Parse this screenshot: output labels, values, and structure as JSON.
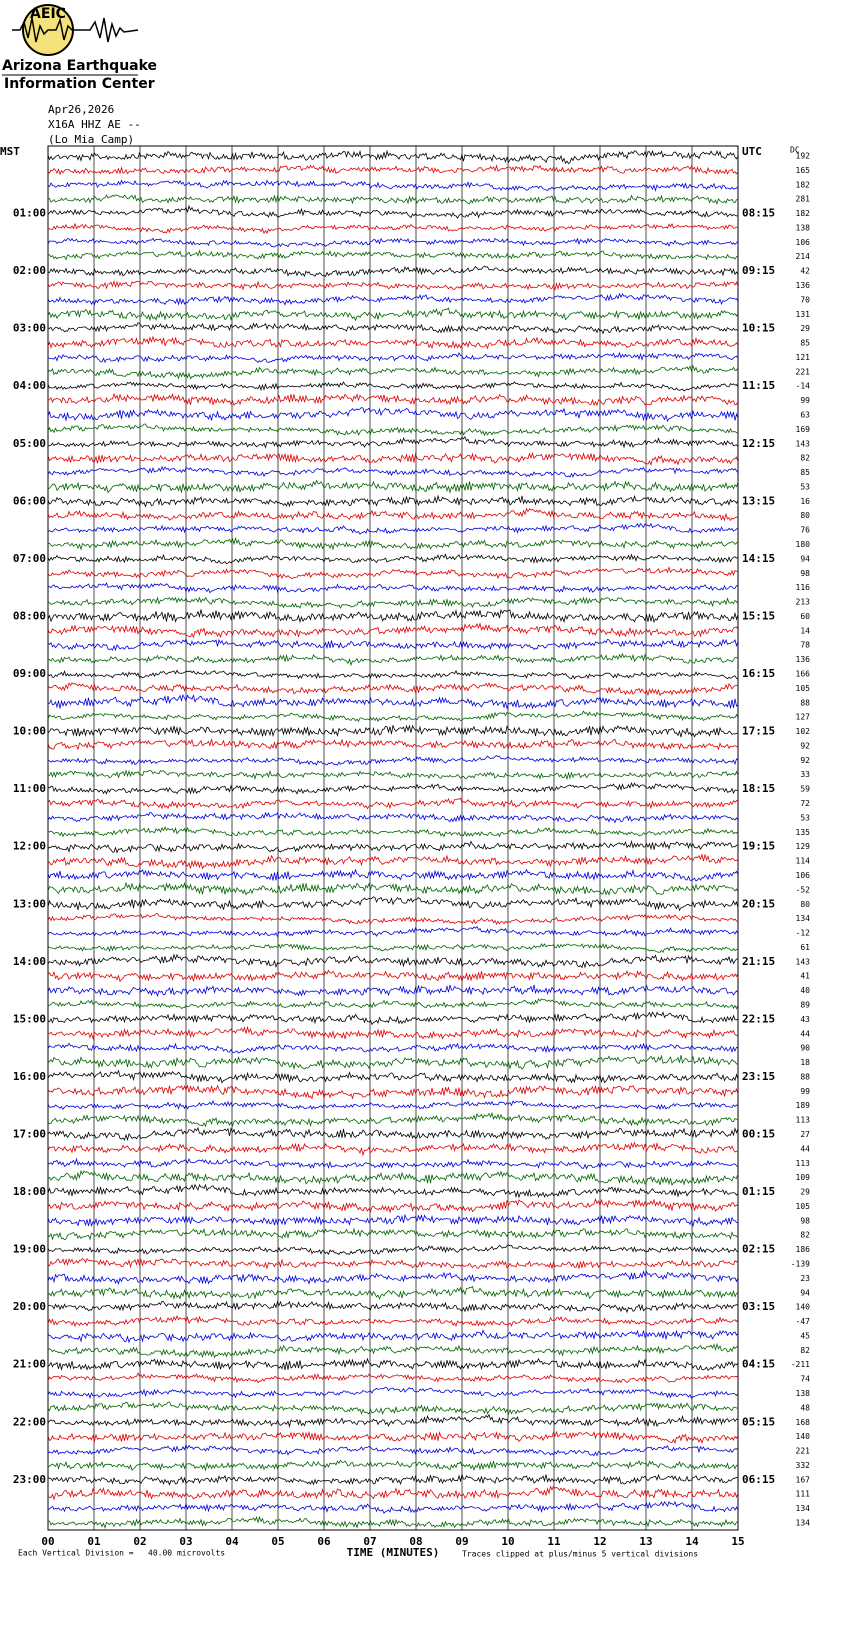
{
  "chart_data": {
    "type": "helicorder",
    "logo": {
      "abbr": "AEIC",
      "line1": "Arizona Earthquake",
      "line2": "Information Center"
    },
    "header": [
      "Apr26,2026",
      "X16A HHZ AE --",
      "(Lo Mia Camp)"
    ],
    "left_labels": [
      "MST",
      "01:00",
      "02:00",
      "03:00",
      "04:00",
      "05:00",
      "06:00",
      "07:00",
      "08:00",
      "09:00",
      "10:00",
      "11:00",
      "12:00",
      "13:00",
      "14:00",
      "15:00",
      "16:00",
      "17:00",
      "18:00",
      "19:00",
      "20:00",
      "21:00",
      "22:00",
      "23:00"
    ],
    "right_labels": [
      "UTC",
      "08:15",
      "09:15",
      "10:15",
      "11:15",
      "12:15",
      "13:15",
      "14:15",
      "15:15",
      "16:15",
      "17:15",
      "18:15",
      "19:15",
      "20:15",
      "21:15",
      "22:15",
      "23:15",
      "00:15",
      "01:15",
      "02:15",
      "03:15",
      "04:15",
      "05:15",
      "06:15"
    ],
    "dc_label": "DC",
    "dc_values": [
      192,
      165,
      182,
      281,
      182,
      138,
      106,
      214,
      42,
      136,
      70,
      131,
      29,
      85,
      121,
      221,
      -14,
      99,
      63,
      169,
      143,
      82,
      85,
      53,
      16,
      80,
      76,
      180,
      94,
      98,
      116,
      213,
      60,
      14,
      78,
      136,
      166,
      105,
      88,
      127,
      102,
      92,
      92,
      33,
      59,
      72,
      53,
      135,
      129,
      114,
      106,
      -52,
      80,
      134,
      -12,
      61,
      143,
      41,
      40,
      89,
      43,
      44,
      90,
      18,
      88,
      99,
      189,
      113,
      27,
      44,
      113,
      109,
      29,
      105,
      98,
      82,
      186,
      -139,
      23,
      94,
      140,
      -47,
      45,
      82,
      -211,
      74,
      138,
      48,
      168,
      140,
      221,
      332,
      167,
      111,
      134,
      134
    ],
    "trace_colors": [
      "#000000",
      "#e00000",
      "#0000e0",
      "#006400"
    ],
    "xlim": [
      0,
      15
    ],
    "xticks": [
      {
        "value": 0,
        "label": "00"
      },
      {
        "value": 1,
        "label": "01"
      },
      {
        "value": 2,
        "label": "02"
      },
      {
        "value": 3,
        "label": "03"
      },
      {
        "value": 4,
        "label": "04"
      },
      {
        "value": 5,
        "label": "05"
      },
      {
        "value": 6,
        "label": "06"
      },
      {
        "value": 7,
        "label": "07"
      },
      {
        "value": 8,
        "label": "08"
      },
      {
        "value": 9,
        "label": "09"
      },
      10,
      11,
      12,
      13,
      14,
      15
    ],
    "xlabel": "TIME (MINUTES)",
    "footer_left": "Each Vertical Division =   40.00 microvolts",
    "footer_right": "Traces clipped at plus/minus 5 vertical divisions"
  }
}
